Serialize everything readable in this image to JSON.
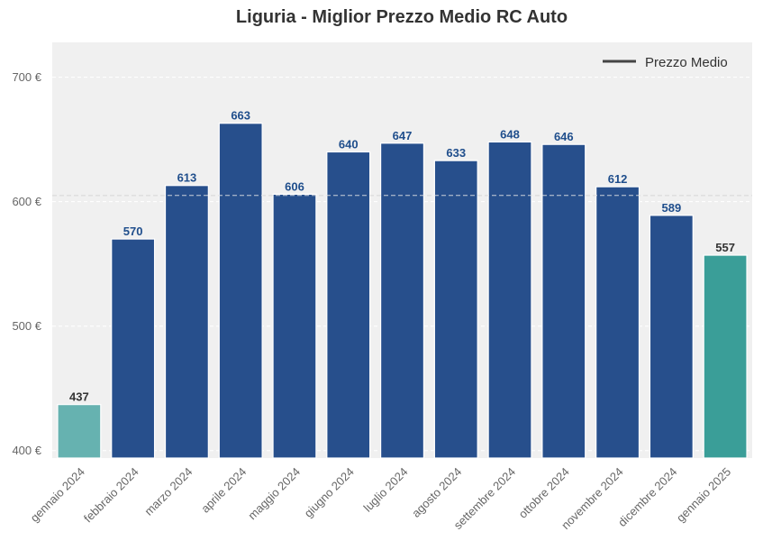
{
  "chart_data": {
    "type": "bar",
    "title": "Liguria - Miglior Prezzo Medio RC Auto",
    "xlabel": "",
    "ylabel": "",
    "categories": [
      "gennaio 2024",
      "febbraio 2024",
      "marzo 2024",
      "aprile 2024",
      "maggio 2024",
      "giugno 2024",
      "luglio 2024",
      "agosto 2024",
      "settembre 2024",
      "ottobre 2024",
      "novembre 2024",
      "dicembre 2024",
      "gennaio 2025"
    ],
    "values": [
      437,
      570,
      613,
      663,
      606,
      640,
      647,
      633,
      648,
      646,
      612,
      589,
      557
    ],
    "value_labels": [
      "437",
      "570",
      "613",
      "663",
      "606",
      "640",
      "647",
      "633",
      "648",
      "646",
      "612",
      "589",
      "557"
    ],
    "bar_colors": [
      "#66b2b0",
      "#274f8c",
      "#274f8c",
      "#274f8c",
      "#274f8c",
      "#274f8c",
      "#274f8c",
      "#274f8c",
      "#274f8c",
      "#274f8c",
      "#274f8c",
      "#274f8c",
      "#3a9e98"
    ],
    "label_colors": [
      "#333333",
      "#1f4e8c",
      "#1f4e8c",
      "#1f4e8c",
      "#1f4e8c",
      "#1f4e8c",
      "#1f4e8c",
      "#1f4e8c",
      "#1f4e8c",
      "#1f4e8c",
      "#1f4e8c",
      "#1f4e8c",
      "#333333"
    ],
    "ylim": [
      394,
      728
    ],
    "yticks": [
      400,
      500,
      600,
      700
    ],
    "ytick_labels": [
      "400 €",
      "500 €",
      "600 €",
      "700 €"
    ],
    "average_line": {
      "value": 605,
      "label": "Prezzo Medio"
    },
    "grid": true,
    "legend_position": "top-right",
    "colors": {
      "background": "#f0f0f0",
      "average_line": "#cccccc",
      "legend_line": "#444444"
    }
  }
}
